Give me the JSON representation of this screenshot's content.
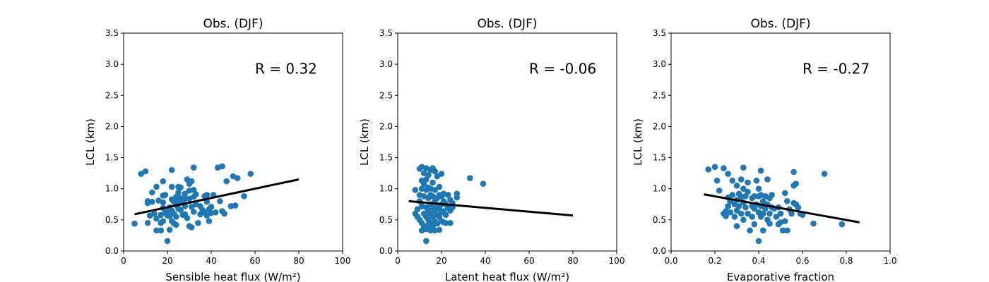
{
  "colors": {
    "points": "#1f77b4",
    "fit_line": "#000000"
  },
  "chart_data": [
    {
      "type": "scatter",
      "title": "Obs. (DJF)",
      "xlabel": "Sensible heat flux (W/m²)",
      "ylabel": "LCL (km)",
      "xlim": [
        0,
        100
      ],
      "ylim": [
        0,
        3.5
      ],
      "xticks": [
        0,
        20,
        40,
        60,
        80,
        100
      ],
      "yticks": [
        0.0,
        0.5,
        1.0,
        1.5,
        2.0,
        2.5,
        3.0,
        3.5
      ],
      "xtick_labels": [
        "0",
        "20",
        "40",
        "60",
        "80",
        "100"
      ],
      "ytick_labels": [
        "0.0",
        "0.5",
        "1.0",
        "1.5",
        "2.0",
        "2.5",
        "3.0",
        "3.5"
      ],
      "annotation": {
        "text": "R = 0.32",
        "x": 60,
        "y": 2.85
      },
      "fit_line": {
        "x": [
          5,
          80
        ],
        "y": [
          0.59,
          1.15
        ]
      },
      "points": [
        [
          5,
          0.44
        ],
        [
          8,
          1.24
        ],
        [
          10,
          1.28
        ],
        [
          11,
          0.8
        ],
        [
          11,
          0.77
        ],
        [
          11,
          0.45
        ],
        [
          12,
          0.57
        ],
        [
          13,
          0.94
        ],
        [
          13,
          0.79
        ],
        [
          14,
          0.6
        ],
        [
          15,
          0.33
        ],
        [
          15,
          0.52
        ],
        [
          15,
          1.03
        ],
        [
          16,
          0.81
        ],
        [
          17,
          0.58
        ],
        [
          17,
          0.45
        ],
        [
          17,
          0.33
        ],
        [
          18,
          1.12
        ],
        [
          18,
          0.89
        ],
        [
          18,
          0.78
        ],
        [
          18,
          0.69
        ],
        [
          18,
          0.48
        ],
        [
          19,
          0.61
        ],
        [
          19,
          0.9
        ],
        [
          20,
          0.63
        ],
        [
          20,
          0.57
        ],
        [
          20,
          0.16
        ],
        [
          21,
          0.7
        ],
        [
          21,
          0.56
        ],
        [
          21,
          0.34
        ],
        [
          22,
          1.3
        ],
        [
          22,
          1.03
        ],
        [
          22,
          0.83
        ],
        [
          22,
          0.65
        ],
        [
          22,
          0.48
        ],
        [
          23,
          0.6
        ],
        [
          23,
          0.44
        ],
        [
          23,
          0.79
        ],
        [
          24,
          0.87
        ],
        [
          24,
          0.74
        ],
        [
          24,
          0.55
        ],
        [
          24,
          0.42
        ],
        [
          25,
          1.03
        ],
        [
          25,
          0.94
        ],
        [
          25,
          0.8
        ],
        [
          25,
          0.68
        ],
        [
          26,
          1.02
        ],
        [
          26,
          0.85
        ],
        [
          26,
          0.66
        ],
        [
          27,
          0.79
        ],
        [
          27,
          0.58
        ],
        [
          28,
          0.92
        ],
        [
          28,
          0.84
        ],
        [
          28,
          0.72
        ],
        [
          28,
          0.59
        ],
        [
          29,
          1.15
        ],
        [
          29,
          0.53
        ],
        [
          30,
          1.08
        ],
        [
          30,
          0.97
        ],
        [
          30,
          0.84
        ],
        [
          30,
          0.4
        ],
        [
          31,
          1.12
        ],
        [
          31,
          0.71
        ],
        [
          31,
          0.38
        ],
        [
          32,
          1.34
        ],
        [
          32,
          0.98
        ],
        [
          32,
          0.87
        ],
        [
          32,
          0.63
        ],
        [
          33,
          0.91
        ],
        [
          33,
          0.75
        ],
        [
          34,
          0.45
        ],
        [
          35,
          0.59
        ],
        [
          35,
          0.72
        ],
        [
          36,
          0.66
        ],
        [
          37,
          0.88
        ],
        [
          37,
          0.62
        ],
        [
          38,
          0.79
        ],
        [
          38,
          0.57
        ],
        [
          38,
          0.9
        ],
        [
          39,
          0.67
        ],
        [
          39,
          0.48
        ],
        [
          40,
          0.71
        ],
        [
          40,
          0.61
        ],
        [
          41,
          0.9
        ],
        [
          42,
          0.62
        ],
        [
          43,
          1.34
        ],
        [
          44,
          0.8
        ],
        [
          45,
          1.36
        ],
        [
          45,
          0.64
        ],
        [
          46,
          0.6
        ],
        [
          47,
          1.12
        ],
        [
          49,
          0.72
        ],
        [
          50,
          1.2
        ],
        [
          51,
          0.73
        ],
        [
          52,
          1.17
        ],
        [
          55,
          0.88
        ],
        [
          58,
          1.24
        ]
      ]
    },
    {
      "type": "scatter",
      "title": "Obs. (DJF)",
      "xlabel": "Latent heat flux (W/m²)",
      "ylabel": "LCL (km)",
      "xlim": [
        0,
        100
      ],
      "ylim": [
        0,
        3.5
      ],
      "xticks": [
        0,
        20,
        40,
        60,
        80,
        100
      ],
      "yticks": [
        0.0,
        0.5,
        1.0,
        1.5,
        2.0,
        2.5,
        3.0,
        3.5
      ],
      "xtick_labels": [
        "0",
        "20",
        "40",
        "60",
        "80",
        "100"
      ],
      "ytick_labels": [
        "0.0",
        "0.5",
        "1.0",
        "1.5",
        "2.0",
        "2.5",
        "3.0",
        "3.5"
      ],
      "annotation": {
        "text": "R = -0.06",
        "x": 60,
        "y": 2.85
      },
      "fit_line": {
        "x": [
          5,
          80
        ],
        "y": [
          0.8,
          0.57
        ]
      },
      "points": [
        [
          8,
          0.98
        ],
        [
          8,
          0.6
        ],
        [
          9,
          0.55
        ],
        [
          9,
          0.67
        ],
        [
          10,
          1.32
        ],
        [
          10,
          0.9
        ],
        [
          10,
          0.8
        ],
        [
          10,
          0.5
        ],
        [
          11,
          1.35
        ],
        [
          11,
          1.13
        ],
        [
          11,
          1.0
        ],
        [
          11,
          0.72
        ],
        [
          11,
          0.45
        ],
        [
          11,
          0.33
        ],
        [
          12,
          1.25
        ],
        [
          12,
          1.08
        ],
        [
          12,
          0.88
        ],
        [
          12,
          0.6
        ],
        [
          12,
          0.4
        ],
        [
          13,
          1.33
        ],
        [
          13,
          1.15
        ],
        [
          13,
          0.98
        ],
        [
          13,
          0.7
        ],
        [
          13,
          0.55
        ],
        [
          13,
          0.35
        ],
        [
          13,
          0.16
        ],
        [
          14,
          1.22
        ],
        [
          14,
          1.02
        ],
        [
          14,
          0.85
        ],
        [
          14,
          0.65
        ],
        [
          14,
          0.5
        ],
        [
          14,
          0.42
        ],
        [
          15,
          1.3
        ],
        [
          15,
          1.0
        ],
        [
          15,
          0.9
        ],
        [
          15,
          0.75
        ],
        [
          15,
          0.6
        ],
        [
          15,
          0.45
        ],
        [
          15,
          0.33
        ],
        [
          16,
          1.33
        ],
        [
          16,
          1.1
        ],
        [
          16,
          0.88
        ],
        [
          16,
          0.7
        ],
        [
          16,
          0.55
        ],
        [
          16,
          0.4
        ],
        [
          17,
          1.28
        ],
        [
          17,
          0.98
        ],
        [
          17,
          0.8
        ],
        [
          17,
          0.65
        ],
        [
          17,
          0.48
        ],
        [
          17,
          0.33
        ],
        [
          18,
          1.2
        ],
        [
          18,
          0.85
        ],
        [
          18,
          0.72
        ],
        [
          18,
          0.58
        ],
        [
          18,
          0.44
        ],
        [
          19,
          1.03
        ],
        [
          19,
          0.9
        ],
        [
          19,
          0.68
        ],
        [
          19,
          0.55
        ],
        [
          19,
          0.34
        ],
        [
          20,
          1.24
        ],
        [
          20,
          0.88
        ],
        [
          20,
          0.75
        ],
        [
          20,
          0.62
        ],
        [
          20,
          0.48
        ],
        [
          21,
          0.92
        ],
        [
          21,
          0.8
        ],
        [
          21,
          0.64
        ],
        [
          21,
          0.46
        ],
        [
          22,
          0.75
        ],
        [
          22,
          0.58
        ],
        [
          22,
          0.45
        ],
        [
          23,
          0.9
        ],
        [
          23,
          0.7
        ],
        [
          24,
          0.82
        ],
        [
          24,
          0.65
        ],
        [
          24,
          0.45
        ],
        [
          25,
          0.77
        ],
        [
          25,
          0.7
        ],
        [
          27,
          0.92
        ],
        [
          27,
          0.86
        ],
        [
          33,
          1.17
        ],
        [
          39,
          1.08
        ]
      ]
    },
    {
      "type": "scatter",
      "title": "Obs. (DJF)",
      "xlabel": "Evaporative fraction",
      "ylabel": "LCL (km)",
      "xlim": [
        0,
        1
      ],
      "ylim": [
        0,
        3.5
      ],
      "xticks": [
        0.0,
        0.2,
        0.4,
        0.6,
        0.8,
        1.0
      ],
      "yticks": [
        0.0,
        0.5,
        1.0,
        1.5,
        2.0,
        2.5,
        3.0,
        3.5
      ],
      "xtick_labels": [
        "0.0",
        "0.2",
        "0.4",
        "0.6",
        "0.8",
        "1.0"
      ],
      "ytick_labels": [
        "0.0",
        "0.5",
        "1.0",
        "1.5",
        "2.0",
        "2.5",
        "3.0",
        "3.5"
      ],
      "annotation": {
        "text": "R = -0.27",
        "x": 0.6,
        "y": 2.85
      },
      "fit_line": {
        "x": [
          0.15,
          0.86
        ],
        "y": [
          0.91,
          0.46
        ]
      },
      "points": [
        [
          0.17,
          1.31
        ],
        [
          0.2,
          1.35
        ],
        [
          0.21,
          1.13
        ],
        [
          0.22,
          0.97
        ],
        [
          0.24,
          1.33
        ],
        [
          0.24,
          0.6
        ],
        [
          0.25,
          0.64
        ],
        [
          0.25,
          0.56
        ],
        [
          0.26,
          1.24
        ],
        [
          0.26,
          0.86
        ],
        [
          0.26,
          0.72
        ],
        [
          0.27,
          0.8
        ],
        [
          0.27,
          0.62
        ],
        [
          0.28,
          1.13
        ],
        [
          0.28,
          0.9
        ],
        [
          0.29,
          0.75
        ],
        [
          0.29,
          0.55
        ],
        [
          0.3,
          1.05
        ],
        [
          0.3,
          0.82
        ],
        [
          0.3,
          0.65
        ],
        [
          0.3,
          0.4
        ],
        [
          0.31,
          0.92
        ],
        [
          0.31,
          0.72
        ],
        [
          0.32,
          1.15
        ],
        [
          0.32,
          0.87
        ],
        [
          0.32,
          0.6
        ],
        [
          0.33,
          1.34
        ],
        [
          0.33,
          1.0
        ],
        [
          0.33,
          0.78
        ],
        [
          0.33,
          0.5
        ],
        [
          0.34,
          0.88
        ],
        [
          0.34,
          0.7
        ],
        [
          0.35,
          1.1
        ],
        [
          0.35,
          0.95
        ],
        [
          0.35,
          0.6
        ],
        [
          0.36,
          0.33
        ],
        [
          0.37,
          0.85
        ],
        [
          0.37,
          0.72
        ],
        [
          0.37,
          0.55
        ],
        [
          0.38,
          0.88
        ],
        [
          0.38,
          0.68
        ],
        [
          0.38,
          0.43
        ],
        [
          0.39,
          1.13
        ],
        [
          0.39,
          0.75
        ],
        [
          0.4,
          1.0
        ],
        [
          0.4,
          0.88
        ],
        [
          0.4,
          0.62
        ],
        [
          0.4,
          0.16
        ],
        [
          0.41,
          1.29
        ],
        [
          0.41,
          0.9
        ],
        [
          0.41,
          0.72
        ],
        [
          0.41,
          0.55
        ],
        [
          0.42,
          0.8
        ],
        [
          0.42,
          0.6
        ],
        [
          0.42,
          0.33
        ],
        [
          0.43,
          0.88
        ],
        [
          0.43,
          0.68
        ],
        [
          0.44,
          1.15
        ],
        [
          0.44,
          0.75
        ],
        [
          0.44,
          0.5
        ],
        [
          0.45,
          0.85
        ],
        [
          0.45,
          0.6
        ],
        [
          0.45,
          0.44
        ],
        [
          0.46,
          0.9
        ],
        [
          0.46,
          0.7
        ],
        [
          0.47,
          0.68
        ],
        [
          0.48,
          0.55
        ],
        [
          0.49,
          0.7
        ],
        [
          0.49,
          0.43
        ],
        [
          0.5,
          0.6
        ],
        [
          0.5,
          0.46
        ],
        [
          0.51,
          0.33
        ],
        [
          0.52,
          0.48
        ],
        [
          0.52,
          0.93
        ],
        [
          0.53,
          0.8
        ],
        [
          0.53,
          0.33
        ],
        [
          0.54,
          0.67
        ],
        [
          0.55,
          0.6
        ],
        [
          0.56,
          0.77
        ],
        [
          0.56,
          1.05
        ],
        [
          0.56,
          1.27
        ],
        [
          0.57,
          1.08
        ],
        [
          0.57,
          0.75
        ],
        [
          0.58,
          0.7
        ],
        [
          0.59,
          0.6
        ],
        [
          0.6,
          0.58
        ],
        [
          0.65,
          0.44
        ],
        [
          0.7,
          1.24
        ],
        [
          0.78,
          0.43
        ]
      ]
    }
  ]
}
